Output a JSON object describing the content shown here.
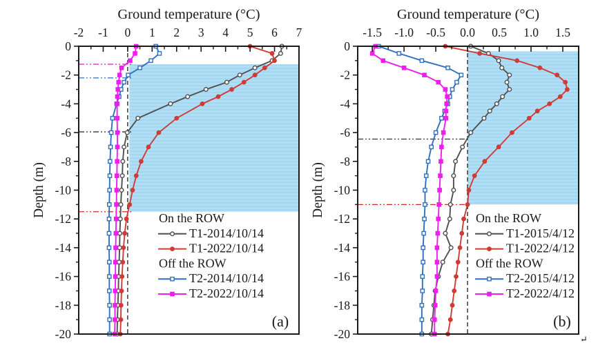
{
  "figure": {
    "return_mark": "↵"
  },
  "chart_data": [
    {
      "type": "line",
      "panel_label": "(a)",
      "title": "Ground temperature (°C)",
      "ylabel": "Depth (m)",
      "xlim": [
        -2,
        7
      ],
      "ylim": [
        0,
        -20
      ],
      "grid": false,
      "legend_position": "inside-lower-middle",
      "xticks": {
        "values": [
          -2,
          -1,
          0,
          1,
          2,
          3,
          4,
          5,
          6,
          7
        ],
        "labels": [
          "-2",
          "-1",
          "0",
          "1",
          "2",
          "3",
          "4",
          "5",
          "6",
          "7"
        ],
        "minor": [
          -1.5,
          -0.5,
          0.5,
          1.5,
          2.5,
          3.5,
          4.5,
          5.5,
          6.5
        ]
      },
      "yticks": {
        "values": [
          0,
          -2,
          -4,
          -6,
          -8,
          -10,
          -12,
          -14,
          -16,
          -18,
          -20
        ],
        "labels": [
          "0",
          "-2",
          "-4",
          "-6",
          "-8",
          "-10",
          "-12",
          "-14",
          "-16",
          "-18",
          "-20"
        ],
        "minor": [
          -1,
          -3,
          -5,
          -7,
          -9,
          -11,
          -13,
          -15,
          -17,
          -19
        ]
      },
      "zero_line_x": 0,
      "shaded_region": {
        "x_from": 0.07,
        "x_to": 7,
        "depth_from": -1.25,
        "depth_to": -11.5,
        "color": "#b0def5",
        "stripe_color": "#a0d3ec"
      },
      "depth_marker_lines": [
        {
          "depth": -1.25,
          "color": "#ec1fec",
          "x_end": 0.15
        },
        {
          "depth": -2.2,
          "color": "#2f6fbf",
          "x_end": 0.15
        },
        {
          "depth": -5.95,
          "color": "#333333",
          "x_end": 0.18
        },
        {
          "depth": -11.5,
          "color": "#cc2a25",
          "x_end": 0.18
        }
      ],
      "depths": [
        0,
        -0.5,
        -1,
        -1.5,
        -2,
        -2.5,
        -3,
        -3.5,
        -4,
        -5,
        -6,
        -7,
        -8,
        -9,
        -10,
        -11,
        -12,
        -13,
        -14,
        -15,
        -16,
        -17,
        -18,
        -19,
        -20
      ],
      "series": [
        {
          "id": "t1-2014",
          "label": "T1-2014/10/14",
          "color": "#4f4f4f",
          "marker": "open-circle",
          "temps": [
            6.3,
            6.25,
            5.9,
            5.2,
            4.58,
            4.05,
            3.2,
            2.45,
            1.75,
            0.42,
            -0.02,
            -0.15,
            -0.2,
            -0.22,
            -0.25,
            -0.28,
            -0.3,
            -0.32,
            -0.33,
            -0.35,
            -0.37,
            -0.38,
            -0.4,
            -0.42,
            -0.43
          ]
        },
        {
          "id": "t1-2022",
          "label": "T1-2022/10/14",
          "color": "#cf3b35",
          "marker": "filled-circle",
          "temps": [
            5.0,
            5.9,
            6.0,
            5.6,
            5.2,
            4.75,
            4.25,
            3.7,
            3.05,
            2.0,
            1.27,
            0.85,
            0.55,
            0.35,
            0.2,
            0.08,
            -0.05,
            -0.12,
            -0.17,
            -0.2,
            -0.23,
            -0.25,
            -0.27,
            -0.28,
            -0.3
          ]
        },
        {
          "id": "t2-2014",
          "label": "T2-2014/10/14",
          "color": "#2f6fbf",
          "marker": "open-square",
          "temps": [
            1.15,
            1.3,
            0.95,
            0.5,
            0.02,
            -0.15,
            -0.27,
            -0.35,
            -0.45,
            -0.62,
            -0.67,
            -0.7,
            -0.72,
            -0.73,
            -0.74,
            -0.75,
            -0.76,
            -0.76,
            -0.76,
            -0.75,
            -0.75,
            -0.75,
            -0.74,
            -0.74,
            -0.74
          ]
        },
        {
          "id": "t2-2022",
          "label": "T2-2022/10/14",
          "color": "#ec1fec",
          "marker": "filled-square",
          "temps": [
            0.35,
            0.3,
            0.1,
            -0.25,
            -0.33,
            -0.37,
            -0.4,
            -0.42,
            -0.43,
            -0.43,
            -0.42,
            -0.42,
            -0.43,
            -0.44,
            -0.45,
            -0.46,
            -0.47,
            -0.48,
            -0.49,
            -0.5,
            -0.5,
            -0.51,
            -0.52,
            -0.52,
            -0.53
          ]
        }
      ],
      "legend": {
        "groups": [
          {
            "title": "On the ROW",
            "items": [
              {
                "label": "T1-2014/10/14",
                "series": 0
              },
              {
                "label": "T1-2022/10/14",
                "series": 1
              }
            ]
          },
          {
            "title": "Off the ROW",
            "items": [
              {
                "label": "T2-2014/10/14",
                "series": 2
              },
              {
                "label": "T2-2022/10/14",
                "series": 3
              }
            ]
          }
        ]
      }
    },
    {
      "type": "line",
      "panel_label": "(b)",
      "title": "Ground temperature (°C)",
      "ylabel": "Depth (m)",
      "xlim": [
        -1.73,
        1.75
      ],
      "ylim": [
        0,
        -20
      ],
      "grid": false,
      "legend_position": "inside-lower-middle",
      "xticks": {
        "values": [
          -1.5,
          -1.0,
          -0.5,
          0.0,
          0.5,
          1.0,
          1.5
        ],
        "labels": [
          "-1.5",
          "-1.0",
          "-0.5",
          "0.0",
          "0.5",
          "1.0",
          "1.5"
        ],
        "minor": [
          -1.25,
          -0.75,
          -0.25,
          0.25,
          0.75,
          1.25
        ]
      },
      "yticks": {
        "values": [
          0,
          -2,
          -4,
          -6,
          -8,
          -10,
          -12,
          -14,
          -16,
          -18,
          -20
        ],
        "labels": [
          "0",
          "-2",
          "-4",
          "-6",
          "-8",
          "-10",
          "-12",
          "-14",
          "-16",
          "-18",
          "-20"
        ],
        "minor": [
          -1,
          -3,
          -5,
          -7,
          -9,
          -11,
          -13,
          -15,
          -17,
          -19
        ]
      },
      "zero_line_x": 0,
      "shaded_region": {
        "x_from": 0,
        "x_to": 1.75,
        "depth_from": -0.35,
        "depth_to": -11.0,
        "color": "#b0def5",
        "stripe_color": "#a0d3ec"
      },
      "depth_marker_lines": [
        {
          "depth": -6.45,
          "color": "#333333",
          "x_end": 0.0
        },
        {
          "depth": -11.0,
          "color": "#cc2a25",
          "x_end": 0.0
        }
      ],
      "depths": [
        0,
        -0.5,
        -1,
        -1.5,
        -2,
        -2.5,
        -3,
        -3.5,
        -4,
        -4.5,
        -5,
        -6,
        -7,
        -8,
        -9,
        -10,
        -11,
        -12,
        -13,
        -14,
        -15,
        -16,
        -17,
        -18,
        -19,
        -20
      ],
      "series": [
        {
          "id": "t1-2015",
          "label": "T1-2015/4/12",
          "color": "#4f4f4f",
          "marker": "open-circle",
          "temps": [
            0.05,
            0.33,
            0.49,
            0.54,
            0.66,
            0.62,
            0.66,
            0.55,
            0.46,
            0.35,
            0.26,
            0.05,
            -0.08,
            -0.19,
            -0.22,
            -0.22,
            -0.27,
            -0.28,
            -0.35,
            -0.26,
            -0.39,
            -0.46,
            -0.51,
            -0.53,
            -0.55,
            -0.57
          ]
        },
        {
          "id": "t1-2022",
          "label": "T1-2022/4/12",
          "color": "#cf3b35",
          "marker": "filled-circle",
          "temps": [
            -0.35,
            0.19,
            0.78,
            1.14,
            1.41,
            1.54,
            1.57,
            1.46,
            1.29,
            1.1,
            0.97,
            0.7,
            0.49,
            0.27,
            0.11,
            0.02,
            0.0,
            -0.06,
            -0.09,
            -0.12,
            -0.15,
            -0.18,
            -0.21,
            -0.24,
            -0.27,
            -0.31
          ]
        },
        {
          "id": "t2-2015",
          "label": "T2-2015/4/12",
          "color": "#2f6fbf",
          "marker": "open-square",
          "temps": [
            -1.4,
            -1.08,
            -0.72,
            -0.31,
            -0.1,
            -0.17,
            -0.24,
            -0.28,
            -0.31,
            -0.36,
            -0.41,
            -0.5,
            -0.57,
            -0.62,
            -0.65,
            -0.67,
            -0.67,
            -0.68,
            -0.69,
            -0.7,
            -0.7,
            -0.71,
            -0.71,
            -0.72,
            -0.72,
            -0.72
          ]
        },
        {
          "id": "t2-2022",
          "label": "T2-2022/4/12",
          "color": "#ec1fec",
          "marker": "filled-square",
          "temps": [
            -1.45,
            -1.5,
            -1.33,
            -1.0,
            -0.68,
            -0.46,
            -0.35,
            -0.32,
            -0.33,
            -0.34,
            -0.34,
            -0.38,
            -0.41,
            -0.42,
            -0.43,
            -0.44,
            -0.45,
            -0.46,
            -0.47,
            -0.48,
            -0.48,
            -0.48,
            -0.5,
            -0.51,
            -0.52,
            -0.52
          ]
        }
      ],
      "legend": {
        "groups": [
          {
            "title": "On the ROW",
            "items": [
              {
                "label": "T1-2015/4/12",
                "series": 0
              },
              {
                "label": "T1-2022/4/12",
                "series": 1
              }
            ]
          },
          {
            "title": "Off the ROW",
            "items": [
              {
                "label": "T2-2015/4/12",
                "series": 2
              },
              {
                "label": "T2-2022/4/12",
                "series": 3
              }
            ]
          }
        ]
      }
    }
  ]
}
